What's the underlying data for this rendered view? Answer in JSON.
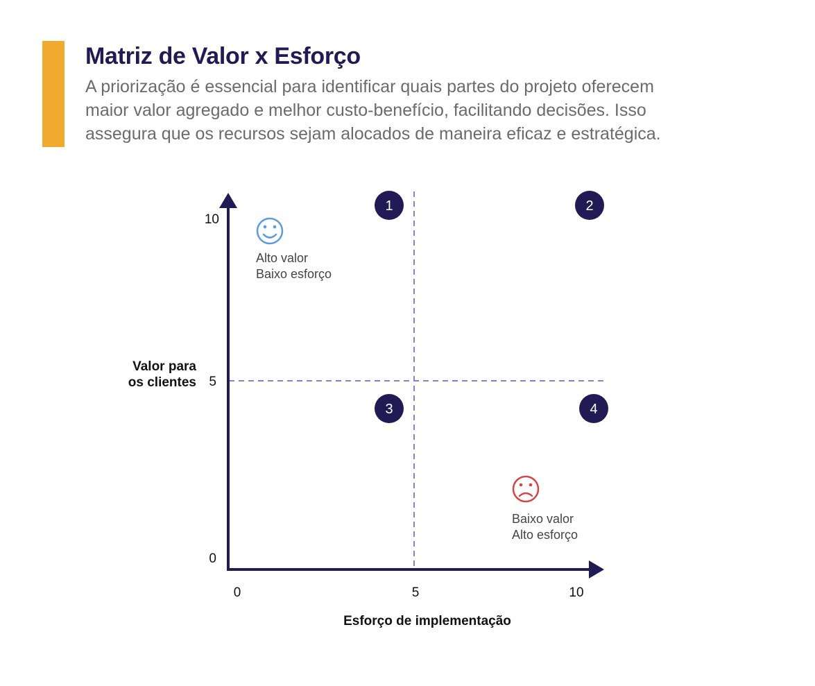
{
  "header": {
    "title": "Matriz de Valor x Esforço",
    "description_lines": [
      "A priorização é essencial para identificar quais partes do projeto oferecem",
      "maior valor agregado e melhor custo-benefício, facilitando decisões. Isso",
      "assegura que os recursos sejam alocados de maneira eficaz e estratégica."
    ]
  },
  "matrix": {
    "x_axis": {
      "label": "Esforço de implementação",
      "ticks": [
        "0",
        "5",
        "10"
      ],
      "range": [
        0,
        10
      ]
    },
    "y_axis": {
      "label_lines": [
        "Valor para",
        "os clientes"
      ],
      "ticks": [
        "10",
        "5",
        "0"
      ],
      "range": [
        0,
        10
      ]
    },
    "quadrants": [
      {
        "number": "1"
      },
      {
        "number": "2"
      },
      {
        "number": "3"
      },
      {
        "number": "4"
      }
    ],
    "annotations": {
      "best": {
        "icon": "smile-icon",
        "lines": [
          "Alto valor",
          "Baixo esforço"
        ]
      },
      "worst": {
        "icon": "frown-icon",
        "lines": [
          "Baixo valor",
          "Alto esforço"
        ]
      }
    }
  },
  "colors": {
    "accent": "#F0AA2E",
    "navy": "#221A55",
    "dashed": "#8A80C8",
    "smile": "#5B9BE0",
    "frown": "#D64545"
  }
}
